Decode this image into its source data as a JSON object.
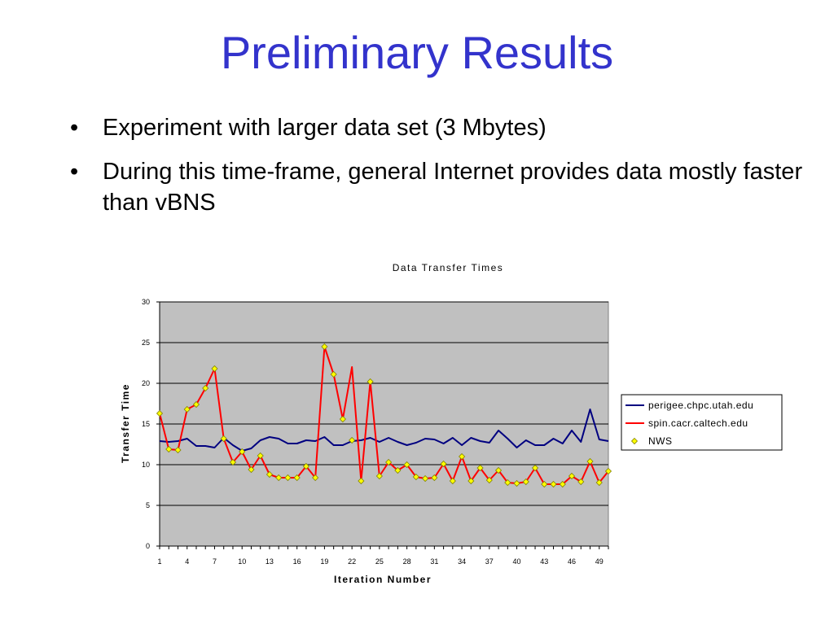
{
  "slide": {
    "title": "Preliminary Results",
    "bullets": [
      "Experiment with larger data set (3 Mbytes)",
      "During this time-frame, general Internet provides data mostly faster than vBNS"
    ]
  },
  "chart_data": {
    "type": "line",
    "title": "Data Transfer Times",
    "xlabel": "Iteration Number",
    "ylabel": "Transfer Time",
    "xlim": [
      1,
      50
    ],
    "ylim": [
      0,
      30
    ],
    "y_ticks": [
      0,
      5,
      10,
      15,
      20,
      25,
      30
    ],
    "x_tick_labels": [
      1,
      4,
      7,
      10,
      13,
      16,
      19,
      22,
      25,
      28,
      31,
      34,
      37,
      40,
      43,
      46,
      49
    ],
    "grid": "horizontal",
    "legend_position": "right",
    "plot_background": "#c0c0c0",
    "x": [
      1,
      2,
      3,
      4,
      5,
      6,
      7,
      8,
      9,
      10,
      11,
      12,
      13,
      14,
      15,
      16,
      17,
      18,
      19,
      20,
      21,
      22,
      23,
      24,
      25,
      26,
      27,
      28,
      29,
      30,
      31,
      32,
      33,
      34,
      35,
      36,
      37,
      38,
      39,
      40,
      41,
      42,
      43,
      44,
      45,
      46,
      47,
      48,
      49,
      50
    ],
    "series": [
      {
        "name": "perigee.chpc.utah.edu",
        "color": "#000080",
        "marker": "none",
        "values": [
          12.9,
          12.8,
          12.9,
          13.2,
          12.3,
          12.3,
          12.1,
          13.3,
          12.4,
          11.7,
          12.0,
          13.0,
          13.4,
          13.2,
          12.6,
          12.6,
          13.0,
          12.9,
          13.4,
          12.4,
          12.4,
          12.9,
          13.0,
          13.3,
          12.8,
          13.3,
          12.8,
          12.4,
          12.7,
          13.2,
          13.1,
          12.6,
          13.3,
          12.4,
          13.3,
          12.9,
          12.7,
          14.2,
          13.2,
          12.1,
          13.0,
          12.4,
          12.4,
          13.2,
          12.6,
          14.2,
          12.8,
          16.8,
          13.1,
          12.9
        ]
      },
      {
        "name": "spin.cacr.caltech.edu",
        "color": "#ff0000",
        "marker": "none",
        "values": [
          16.3,
          11.9,
          11.8,
          16.8,
          17.4,
          19.4,
          21.8,
          13.2,
          10.3,
          11.6,
          9.4,
          11.1,
          8.8,
          8.4,
          8.4,
          8.4,
          9.8,
          8.4,
          24.5,
          21.1,
          15.6,
          22.0,
          8.0,
          20.2,
          8.6,
          10.3,
          9.3,
          10.0,
          8.5,
          8.3,
          8.4,
          10.1,
          8.0,
          11.0,
          8.0,
          9.6,
          8.1,
          9.3,
          7.8,
          7.7,
          7.9,
          9.6,
          7.6,
          7.6,
          7.6,
          8.6,
          7.9,
          10.4,
          7.8,
          9.2
        ]
      },
      {
        "name": "NWS",
        "color": "#ffff00",
        "marker": "diamond",
        "line": "none",
        "values": [
          16.3,
          11.9,
          11.8,
          16.8,
          17.4,
          19.4,
          21.8,
          13.2,
          10.3,
          11.6,
          9.4,
          11.1,
          8.8,
          8.4,
          8.4,
          8.4,
          9.8,
          8.4,
          24.5,
          21.1,
          15.6,
          13.0,
          8.0,
          20.2,
          8.6,
          10.3,
          9.3,
          10.0,
          8.5,
          8.3,
          8.4,
          10.1,
          8.0,
          11.0,
          8.0,
          9.6,
          8.1,
          9.3,
          7.8,
          7.7,
          7.9,
          9.6,
          7.6,
          7.6,
          7.6,
          8.6,
          7.9,
          10.4,
          7.8,
          9.2
        ]
      }
    ]
  }
}
